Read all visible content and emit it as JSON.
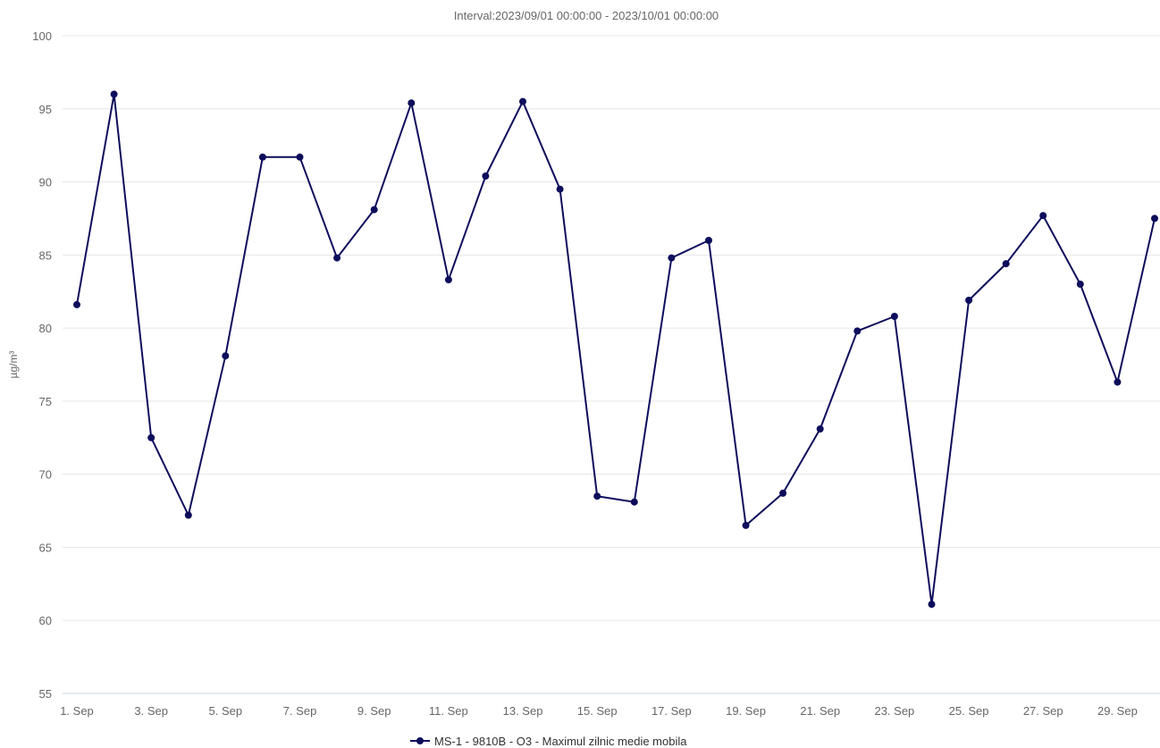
{
  "chart_data": {
    "type": "line",
    "subtitle": "Interval:2023/09/01 00:00:00 - 2023/10/01 00:00:00",
    "ylabel": "µg/m³",
    "ylim": [
      55,
      100
    ],
    "yticks": [
      55,
      60,
      65,
      70,
      75,
      80,
      85,
      90,
      95,
      100
    ],
    "grid": true,
    "legend_position": "bottom-center",
    "x_tick_labels": [
      "1. Sep",
      "3. Sep",
      "5. Sep",
      "7. Sep",
      "9. Sep",
      "11. Sep",
      "13. Sep",
      "15. Sep",
      "17. Sep",
      "19. Sep",
      "21. Sep",
      "23. Sep",
      "25. Sep",
      "27. Sep",
      "29. Sep"
    ],
    "x_tick_days": [
      1,
      3,
      5,
      7,
      9,
      11,
      13,
      15,
      17,
      19,
      21,
      23,
      25,
      27,
      29
    ],
    "x_range_days": [
      1,
      30
    ],
    "series": [
      {
        "name": "MS-1 - 9810B - O3 - Maximul zilnic medie mobila",
        "color": "#0d0d5c",
        "x": [
          "2023-09-01",
          "2023-09-02",
          "2023-09-03",
          "2023-09-04",
          "2023-09-05",
          "2023-09-06",
          "2023-09-07",
          "2023-09-08",
          "2023-09-09",
          "2023-09-10",
          "2023-09-11",
          "2023-09-12",
          "2023-09-13",
          "2023-09-14",
          "2023-09-15",
          "2023-09-16",
          "2023-09-17",
          "2023-09-18",
          "2023-09-19",
          "2023-09-20",
          "2023-09-21",
          "2023-09-22",
          "2023-09-23",
          "2023-09-24",
          "2023-09-25",
          "2023-09-26",
          "2023-09-27",
          "2023-09-28",
          "2023-09-29",
          "2023-09-30"
        ],
        "values": [
          81.6,
          96.0,
          72.5,
          67.2,
          78.1,
          91.7,
          91.7,
          84.8,
          88.1,
          95.4,
          83.3,
          90.4,
          95.5,
          89.5,
          68.5,
          68.1,
          84.8,
          86.0,
          66.5,
          68.7,
          73.1,
          79.8,
          80.8,
          61.1,
          81.9,
          84.4,
          87.7,
          83.0,
          76.3,
          87.5
        ]
      }
    ]
  }
}
